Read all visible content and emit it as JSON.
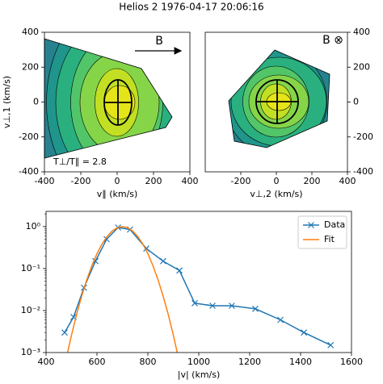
{
  "title": "Helios 2 1976-04-17 20:06:16",
  "chart_data": [
    {
      "type": "contour",
      "xlabel": "v∥ (km/s)",
      "ylabel": "v⊥,1 (km/s)",
      "xlim": [
        -400,
        400
      ],
      "ylim": [
        -400,
        400
      ],
      "xticks": [
        -400,
        -200,
        0,
        200,
        400
      ],
      "yticks": [
        -400,
        -200,
        0,
        200,
        400
      ],
      "yaxis_side": "left",
      "annotations": [
        "B",
        "T⊥/T∥ = 2.8"
      ]
    },
    {
      "type": "contour",
      "xlabel": "v⊥,2 (km/s)",
      "xlim": [
        -400,
        400
      ],
      "ylim": [
        -400,
        400
      ],
      "xticks": [
        -200,
        0,
        200,
        400
      ],
      "yticks": [
        -400,
        -200,
        0,
        200,
        400
      ],
      "yaxis_side": "right",
      "annotations": [
        "B ⊗"
      ]
    },
    {
      "type": "line",
      "xlabel": "|v| (km/s)",
      "yscale": "log",
      "xlim": [
        400,
        1600
      ],
      "ylim": [
        0.001,
        2.3
      ],
      "xticks": [
        400,
        600,
        800,
        1000,
        1200,
        1400,
        1600
      ],
      "yticks": [
        {
          "value": 0.001,
          "label": "10⁻³"
        },
        {
          "value": 0.01,
          "label": "10⁻²"
        },
        {
          "value": 0.1,
          "label": "10⁻¹"
        },
        {
          "value": 1,
          "label": "10⁰"
        }
      ],
      "legend": "upper right",
      "series": [
        {
          "name": "Data",
          "color": "#1f77b4",
          "marker": "x",
          "x": [
            473,
            508,
            549,
            594,
            638,
            683,
            730,
            794,
            860,
            924,
            984,
            1054,
            1130,
            1222,
            1321,
            1413,
            1518
          ],
          "values": [
            0.003,
            0.007,
            0.035,
            0.15,
            0.5,
            0.95,
            0.85,
            0.3,
            0.15,
            0.09,
            0.015,
            0.013,
            0.013,
            0.011,
            0.006,
            0.003,
            0.0015
          ]
        },
        {
          "name": "Fit",
          "color": "#ff7f0e",
          "x": [
            480,
            500,
            520,
            540,
            560,
            580,
            600,
            620,
            640,
            660,
            680,
            700,
            720,
            740,
            760,
            780,
            800,
            820,
            840,
            860,
            880,
            900,
            920
          ],
          "values": [
            0.00075,
            0.0026,
            0.0081,
            0.022,
            0.054,
            0.117,
            0.226,
            0.386,
            0.585,
            0.788,
            0.942,
            1,
            0.942,
            0.788,
            0.585,
            0.386,
            0.226,
            0.117,
            0.054,
            0.022,
            0.0081,
            0.0026,
            0.00075
          ]
        }
      ]
    }
  ]
}
